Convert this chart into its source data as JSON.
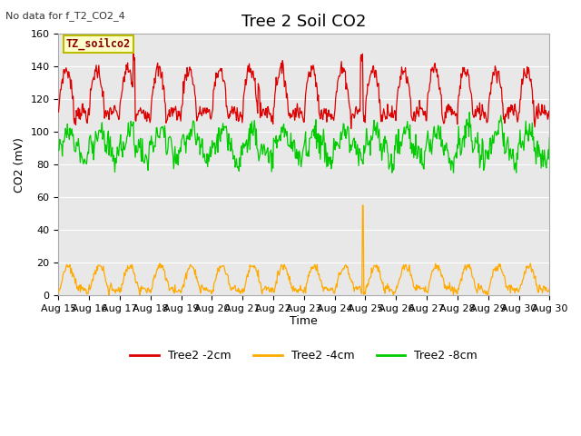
{
  "title": "Tree 2 Soil CO2",
  "no_data_text": "No data for f_T2_CO2_4",
  "ylabel": "CO2 (mV)",
  "xlabel": "Time",
  "box_label": "TZ_soilco2",
  "legend_entries": [
    "Tree2 -2cm",
    "Tree2 -4cm",
    "Tree2 -8cm"
  ],
  "legend_colors": [
    "#dd0000",
    "#ffaa00",
    "#00cc00"
  ],
  "ylim": [
    0,
    160
  ],
  "yticks": [
    0,
    20,
    40,
    60,
    80,
    100,
    120,
    140,
    160
  ],
  "tick_labels": [
    "Aug 15",
    "Aug 16",
    "Aug 17",
    "Aug 18",
    "Aug 19",
    "Aug 20",
    "Aug 21",
    "Aug 22",
    "Aug 23",
    "Aug 24",
    "Aug 25",
    "Aug 26",
    "Aug 27",
    "Aug 28",
    "Aug 29",
    "Aug 30"
  ],
  "plot_bg_color": "#e8e8e8",
  "grid_color": "#ffffff",
  "title_fontsize": 13,
  "label_fontsize": 9,
  "tick_fontsize": 8,
  "figwidth": 6.4,
  "figheight": 4.8,
  "dpi": 100
}
